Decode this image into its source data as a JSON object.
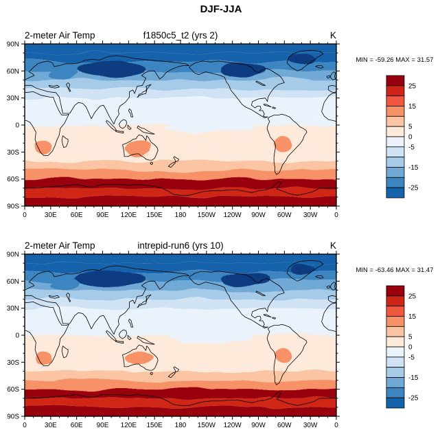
{
  "title": "DJF-JJA",
  "palette": {
    "levels": [
      -30,
      -25,
      -20,
      -15,
      -10,
      -5,
      0,
      5,
      10,
      15,
      20,
      25,
      30
    ],
    "colors": [
      "#1563ab",
      "#3d85c0",
      "#70a9d5",
      "#a6cbe8",
      "#cfe3f4",
      "#eaf3fb",
      "#fdeada",
      "#fbc4a2",
      "#f79267",
      "#ef5940",
      "#cf2518",
      "#99000d"
    ],
    "under": "#0b3d80",
    "over": "#6b0010"
  },
  "chart_data": [
    {
      "type": "heatmap",
      "variable": "2-meter Air Temp",
      "title": "f1850c5_t2 (yrs 2)",
      "units": "K",
      "season_difference": "DJF-JJA",
      "min": -59.26,
      "max": 31.57,
      "minmax_label": "MIN = -59.26 MAX = 31.57",
      "lat_ticks": [
        "90N",
        "60N",
        "30N",
        "0",
        "30S",
        "60S",
        "90S"
      ],
      "lon_ticks": [
        "0",
        "30E",
        "60E",
        "90E",
        "120E",
        "150E",
        "180",
        "150W",
        "120W",
        "90W",
        "60W",
        "30W",
        "0"
      ],
      "colorbar_labels": [
        "25",
        "15",
        "5",
        "0",
        "-5",
        "-15",
        "-25"
      ],
      "zonal_mean": {
        "lat_edges": [
          90,
          80,
          70,
          60,
          50,
          40,
          30,
          20,
          10,
          0,
          -10,
          -20,
          -30,
          -40,
          -50,
          -60,
          -70,
          -80,
          -90
        ],
        "values": [
          -27,
          -26,
          -22,
          -17,
          -12,
          -8,
          -4,
          -3,
          -1,
          1,
          2,
          3,
          4,
          6,
          11,
          16,
          23,
          27
        ]
      },
      "anomaly_regions": [
        {
          "name": "siberia-cold-core",
          "lon": 100,
          "lat": 62,
          "rlon": 40,
          "rlat": 9,
          "value": -36
        },
        {
          "name": "canada-cold-core",
          "lon": 253,
          "lat": 62,
          "rlon": 27,
          "rlat": 8,
          "value": -36
        },
        {
          "name": "greenland-cold",
          "lon": 320,
          "lat": 73,
          "rlon": 15,
          "rlat": 6,
          "value": -33
        },
        {
          "name": "east-europe-cold",
          "lon": 45,
          "lat": 57,
          "rlon": 16,
          "rlat": 7,
          "value": -22
        },
        {
          "name": "equatorial-pacific-cool",
          "lon": 215,
          "lat": -3,
          "rlon": 50,
          "rlat": 6,
          "value": -1
        },
        {
          "name": "australia-warm",
          "lon": 132,
          "lat": -26,
          "rlon": 16,
          "rlat": 8,
          "value": 13
        },
        {
          "name": "southern-africa-warm",
          "lon": 22,
          "lat": -25,
          "rlon": 10,
          "rlat": 7,
          "value": 12
        },
        {
          "name": "south-america-warm",
          "lon": 298,
          "lat": -22,
          "rlon": 10,
          "rlat": 9,
          "value": 12
        },
        {
          "name": "antarctic-coast-ring",
          "lon": 180,
          "lat": -65,
          "rlon": 180,
          "rlat": 5,
          "value": 27
        }
      ]
    },
    {
      "type": "heatmap",
      "variable": "2-meter Air Temp",
      "title": "intrepid-run6 (yrs 10)",
      "units": "K",
      "season_difference": "DJF-JJA",
      "min": -63.46,
      "max": 31.47,
      "minmax_label": "MIN = -63.46 MAX = 31.47",
      "lat_ticks": [
        "90N",
        "60N",
        "30N",
        "0",
        "30S",
        "60S",
        "90S"
      ],
      "lon_ticks": [
        "0",
        "30E",
        "60E",
        "90E",
        "120E",
        "150E",
        "180",
        "150W",
        "120W",
        "90W",
        "60W",
        "30W",
        "0"
      ],
      "colorbar_labels": [
        "25",
        "15",
        "5",
        "0",
        "-5",
        "-15",
        "-25"
      ],
      "zonal_mean": {
        "lat_edges": [
          90,
          80,
          70,
          60,
          50,
          40,
          30,
          20,
          10,
          0,
          -10,
          -20,
          -30,
          -40,
          -50,
          -60,
          -70,
          -80,
          -90
        ],
        "values": [
          -27,
          -26,
          -23,
          -18,
          -13,
          -9,
          -4,
          -3,
          -1,
          1,
          2,
          3,
          4,
          5,
          10,
          15,
          22,
          26
        ]
      },
      "anomaly_regions": [
        {
          "name": "siberia-cold-core",
          "lon": 98,
          "lat": 63,
          "rlon": 42,
          "rlat": 9,
          "value": -38
        },
        {
          "name": "canada-cold-core",
          "lon": 255,
          "lat": 62,
          "rlon": 28,
          "rlat": 8,
          "value": -37
        },
        {
          "name": "greenland-cold",
          "lon": 320,
          "lat": 73,
          "rlon": 15,
          "rlat": 6,
          "value": -33
        },
        {
          "name": "east-europe-cold",
          "lon": 45,
          "lat": 57,
          "rlon": 16,
          "rlat": 7,
          "value": -23
        },
        {
          "name": "equatorial-pacific-cool",
          "lon": 215,
          "lat": -3,
          "rlon": 50,
          "rlat": 6,
          "value": -1
        },
        {
          "name": "australia-warm",
          "lon": 132,
          "lat": -26,
          "rlon": 16,
          "rlat": 8,
          "value": 14
        },
        {
          "name": "southern-africa-warm",
          "lon": 22,
          "lat": -25,
          "rlon": 10,
          "rlat": 7,
          "value": 12
        },
        {
          "name": "south-america-warm",
          "lon": 298,
          "lat": -22,
          "rlon": 10,
          "rlat": 9,
          "value": 12
        },
        {
          "name": "antarctic-coast-ring",
          "lon": 180,
          "lat": -65,
          "rlon": 180,
          "rlat": 5,
          "value": 26
        }
      ]
    }
  ]
}
